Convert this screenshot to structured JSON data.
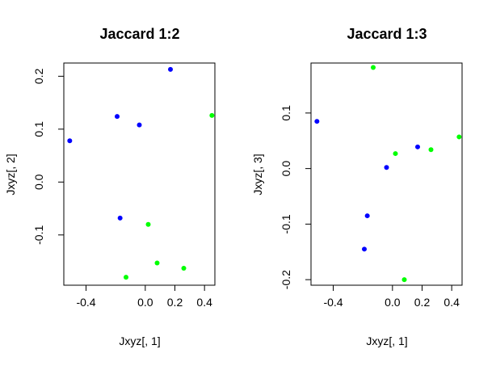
{
  "chart_data": [
    {
      "type": "scatter",
      "title": "Jaccard 1:2",
      "xlabel": "Jxyz[, 1]",
      "ylabel": "Jxyz[, 2]",
      "xlim": [
        -0.55,
        0.47
      ],
      "ylim": [
        -0.195,
        0.225
      ],
      "xticks": [
        -0.4,
        0.0,
        0.2,
        0.4
      ],
      "xtick_labels": [
        "-0.4",
        "0.0",
        "0.2",
        "0.4"
      ],
      "yticks": [
        -0.1,
        0.0,
        0.1,
        0.2
      ],
      "ytick_labels": [
        "-0.1",
        "0.0",
        "0.1",
        "0.2"
      ],
      "grid": false,
      "series": [
        {
          "color": "#0000ff",
          "points": [
            {
              "x": -0.51,
              "y": 0.078
            },
            {
              "x": -0.19,
              "y": 0.124
            },
            {
              "x": -0.04,
              "y": 0.108
            },
            {
              "x": 0.17,
              "y": 0.213
            },
            {
              "x": -0.17,
              "y": -0.068
            }
          ]
        },
        {
          "color": "#00ff00",
          "points": [
            {
              "x": 0.45,
              "y": 0.126
            },
            {
              "x": 0.02,
              "y": -0.08
            },
            {
              "x": 0.08,
              "y": -0.153
            },
            {
              "x": 0.26,
              "y": -0.163
            },
            {
              "x": -0.13,
              "y": -0.18
            }
          ]
        }
      ]
    },
    {
      "type": "scatter",
      "title": "Jaccard 1:3",
      "xlabel": "Jxyz[, 1]",
      "ylabel": "Jxyz[, 3]",
      "xlim": [
        -0.55,
        0.47
      ],
      "ylim": [
        -0.21,
        0.19
      ],
      "xticks": [
        -0.4,
        0.0,
        0.2,
        0.4
      ],
      "xtick_labels": [
        "-0.4",
        "0.0",
        "0.2",
        "0.4"
      ],
      "yticks": [
        -0.2,
        -0.1,
        0.0,
        0.1
      ],
      "ytick_labels": [
        "-0.2",
        "-0.1",
        "0.0",
        "0.1"
      ],
      "grid": false,
      "series": [
        {
          "color": "#0000ff",
          "points": [
            {
              "x": -0.51,
              "y": 0.085
            },
            {
              "x": 0.17,
              "y": 0.039
            },
            {
              "x": -0.04,
              "y": 0.002
            },
            {
              "x": -0.17,
              "y": -0.085
            },
            {
              "x": -0.19,
              "y": -0.145
            }
          ]
        },
        {
          "color": "#00ff00",
          "points": [
            {
              "x": -0.13,
              "y": 0.182
            },
            {
              "x": 0.45,
              "y": 0.057
            },
            {
              "x": 0.26,
              "y": 0.034
            },
            {
              "x": 0.02,
              "y": 0.027
            },
            {
              "x": 0.08,
              "y": -0.2
            }
          ]
        }
      ]
    }
  ]
}
